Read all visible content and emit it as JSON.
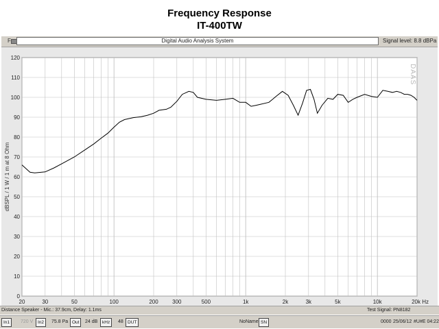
{
  "title": "Frequency Response",
  "subtitle": "IT-400TW",
  "toolbar": {
    "f_icon": "F",
    "window_title": "Digital Audio Analysis System",
    "signal_level": "Signal level: 8.8 dBPa"
  },
  "footer": {
    "distance": "Distance Speaker - Mic.: 37.9cm, Delay: 1.1ms",
    "test_signal": "Test Signal: PN8182",
    "in1": "In1",
    "volt": "720 V",
    "in2": "In2",
    "pa": "75.8 Pa",
    "out": "Out",
    "db24": "24 dB",
    "khz": "kHz",
    "n48": "48",
    "dut": "DUT",
    "noname": "NoName",
    "sn": "SN",
    "code": "0000",
    "date": "25/06/12",
    "time": "#U#E 04:22"
  },
  "colors": {
    "plot_bg": "#ffffff",
    "frame_bg": "#e8e8e8",
    "grid": "#c0c0c0",
    "curve": "#000000"
  },
  "chart_data": {
    "type": "line",
    "xscale": "log",
    "xlim": [
      20,
      20000
    ],
    "ylim": [
      0,
      120
    ],
    "ylabel": "dBSPL / 1 W / 1 m at 8 Ohm",
    "watermark": "DAAS",
    "xticks": [
      {
        "v": 20,
        "label": "20"
      },
      {
        "v": 30,
        "label": "30"
      },
      {
        "v": 50,
        "label": "50"
      },
      {
        "v": 100,
        "label": "100"
      },
      {
        "v": 200,
        "label": "200"
      },
      {
        "v": 300,
        "label": "300"
      },
      {
        "v": 500,
        "label": "500"
      },
      {
        "v": 1000,
        "label": "1k"
      },
      {
        "v": 2000,
        "label": "2k"
      },
      {
        "v": 3000,
        "label": "3k"
      },
      {
        "v": 5000,
        "label": "5k"
      },
      {
        "v": 10000,
        "label": "10k"
      },
      {
        "v": 20000,
        "label": "20k Hz"
      }
    ],
    "yticks": [
      {
        "v": 0,
        "label": "0"
      },
      {
        "v": 10,
        "label": "10"
      },
      {
        "v": 20,
        "label": "20"
      },
      {
        "v": 30,
        "label": "30"
      },
      {
        "v": 40,
        "label": "40"
      },
      {
        "v": 50,
        "label": "50"
      },
      {
        "v": 60,
        "label": "60"
      },
      {
        "v": 70,
        "label": "70"
      },
      {
        "v": 80,
        "label": "80"
      },
      {
        "v": 90,
        "label": "90"
      },
      {
        "v": 100,
        "label": "100"
      },
      {
        "v": 110,
        "label": "110"
      },
      {
        "v": 120,
        "label": "120"
      }
    ],
    "series": [
      {
        "points": [
          [
            20,
            66
          ],
          [
            23,
            62.3
          ],
          [
            25,
            62
          ],
          [
            30,
            62.5
          ],
          [
            35,
            64.5
          ],
          [
            40,
            66.5
          ],
          [
            50,
            70
          ],
          [
            60,
            73.5
          ],
          [
            70,
            76.5
          ],
          [
            80,
            79.5
          ],
          [
            90,
            82
          ],
          [
            100,
            85
          ],
          [
            110,
            87.5
          ],
          [
            120,
            88.8
          ],
          [
            140,
            89.8
          ],
          [
            160,
            90.2
          ],
          [
            180,
            91
          ],
          [
            200,
            92
          ],
          [
            220,
            93.5
          ],
          [
            250,
            94
          ],
          [
            270,
            95
          ],
          [
            300,
            98
          ],
          [
            330,
            101.5
          ],
          [
            370,
            103
          ],
          [
            400,
            102.5
          ],
          [
            430,
            100
          ],
          [
            500,
            99
          ],
          [
            600,
            98.5
          ],
          [
            700,
            99
          ],
          [
            800,
            99.5
          ],
          [
            900,
            97.5
          ],
          [
            1000,
            97.5
          ],
          [
            1100,
            95.5
          ],
          [
            1200,
            96
          ],
          [
            1300,
            96.5
          ],
          [
            1500,
            97.5
          ],
          [
            1600,
            99
          ],
          [
            1700,
            100.5
          ],
          [
            1900,
            103
          ],
          [
            2100,
            101
          ],
          [
            2300,
            96
          ],
          [
            2500,
            91
          ],
          [
            2700,
            97
          ],
          [
            2900,
            103.5
          ],
          [
            3100,
            104
          ],
          [
            3300,
            99
          ],
          [
            3500,
            92
          ],
          [
            3800,
            96
          ],
          [
            4200,
            99.5
          ],
          [
            4600,
            99
          ],
          [
            5000,
            101.5
          ],
          [
            5500,
            101
          ],
          [
            6000,
            97.5
          ],
          [
            6500,
            99
          ],
          [
            7000,
            100
          ],
          [
            8000,
            101.5
          ],
          [
            9000,
            100.5
          ],
          [
            10000,
            100
          ],
          [
            11000,
            103.5
          ],
          [
            12000,
            103
          ],
          [
            13000,
            102.5
          ],
          [
            14000,
            103
          ],
          [
            15000,
            102.5
          ],
          [
            16000,
            101.5
          ],
          [
            17000,
            101.5
          ],
          [
            18000,
            101
          ],
          [
            19000,
            100
          ],
          [
            20000,
            98.5
          ]
        ]
      }
    ]
  }
}
